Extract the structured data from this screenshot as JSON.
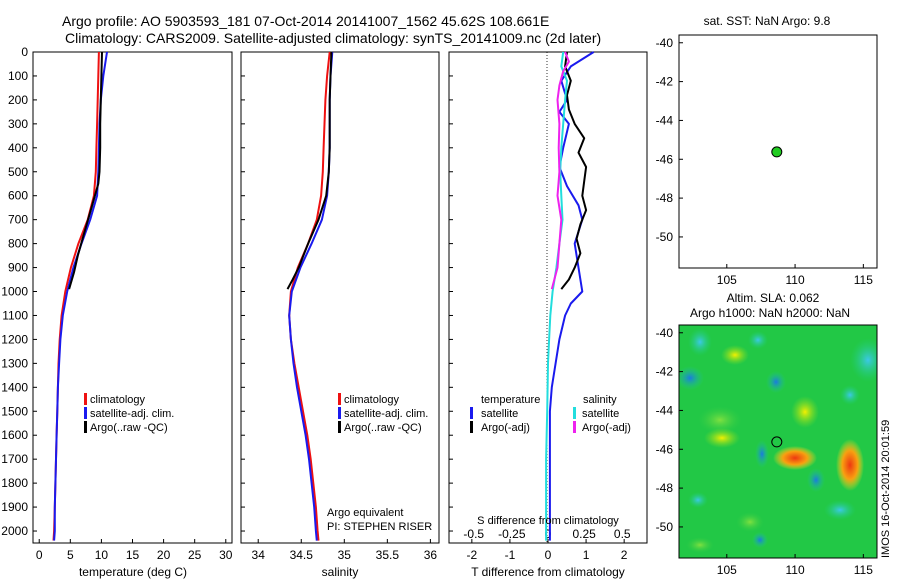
{
  "header": {
    "line1": "Argo profile: AO 5903593_181 07-Oct-2014 20141007_1562 45.62S 108.661E",
    "line2": "Climatology: CARS2009. Satellite-adjusted climatology: synTS_20141009.nc (2d later)"
  },
  "colors": {
    "climatology": "#ee1111",
    "satellite": "#1a1aee",
    "argo": "#000000",
    "cyan": "#22dddd",
    "magenta": "#ee22ee",
    "marker": "#22cc22"
  },
  "footer_stamp": "IMOS 16-Oct-2014 20:01:59",
  "chart_data": [
    {
      "type": "line",
      "panel": "temperature",
      "xlabel": "temperature (deg C)",
      "xlim": [
        -1,
        31
      ],
      "xticks": [
        0,
        5,
        10,
        15,
        20,
        25,
        30
      ],
      "ylim": [
        2050,
        0
      ],
      "yticks": [
        0,
        100,
        200,
        300,
        400,
        500,
        600,
        700,
        800,
        900,
        1000,
        1100,
        1200,
        1300,
        1400,
        1500,
        1600,
        1700,
        1800,
        1900,
        2000
      ],
      "legend": [
        "climatology",
        "satellite-adj. clim.",
        "Argo(..raw -QC)"
      ],
      "series": [
        {
          "name": "climatology",
          "color": "climatology",
          "points": [
            [
              9.6,
              0
            ],
            [
              9.5,
              100
            ],
            [
              9.4,
              200
            ],
            [
              9.3,
              300
            ],
            [
              9.2,
              400
            ],
            [
              9.1,
              500
            ],
            [
              8.8,
              600
            ],
            [
              7.8,
              700
            ],
            [
              6.3,
              800
            ],
            [
              5.1,
              900
            ],
            [
              4.2,
              1000
            ],
            [
              3.6,
              1100
            ],
            [
              3.3,
              1200
            ],
            [
              3.1,
              1300
            ],
            [
              3.0,
              1400
            ],
            [
              2.9,
              1500
            ],
            [
              2.8,
              1600
            ],
            [
              2.7,
              1700
            ],
            [
              2.6,
              1800
            ],
            [
              2.5,
              1900
            ],
            [
              2.4,
              2000
            ],
            [
              2.3,
              2040
            ]
          ]
        },
        {
          "name": "satellite-adj. clim.",
          "color": "satellite",
          "points": [
            [
              10.9,
              0
            ],
            [
              10.3,
              100
            ],
            [
              9.9,
              200
            ],
            [
              9.7,
              300
            ],
            [
              9.6,
              400
            ],
            [
              9.5,
              500
            ],
            [
              9.3,
              600
            ],
            [
              8.2,
              700
            ],
            [
              6.8,
              800
            ],
            [
              5.5,
              900
            ],
            [
              4.5,
              1000
            ],
            [
              3.8,
              1100
            ],
            [
              3.4,
              1200
            ],
            [
              3.2,
              1300
            ],
            [
              3.0,
              1400
            ],
            [
              2.9,
              1500
            ],
            [
              2.8,
              1600
            ],
            [
              2.7,
              1700
            ],
            [
              2.6,
              1800
            ],
            [
              2.5,
              1900
            ],
            [
              2.5,
              2000
            ],
            [
              2.4,
              2040
            ]
          ]
        },
        {
          "name": "Argo(..raw -QC)",
          "color": "argo",
          "points": [
            [
              10.1,
              0
            ],
            [
              10.0,
              100
            ],
            [
              9.9,
              200
            ],
            [
              9.8,
              300
            ],
            [
              9.8,
              400
            ],
            [
              9.7,
              500
            ],
            [
              9.5,
              550
            ],
            [
              8.4,
              650
            ],
            [
              7.3,
              750
            ],
            [
              6.2,
              850
            ],
            [
              5.6,
              920
            ],
            [
              4.8,
              990
            ]
          ]
        }
      ]
    },
    {
      "type": "line",
      "panel": "salinity",
      "xlabel": "salinity",
      "xlim": [
        33.8,
        36.1
      ],
      "xticks": [
        34,
        34.5,
        35,
        35.5,
        36
      ],
      "ylim": [
        2050,
        0
      ],
      "legend": [
        "climatology",
        "satellite-adj. clim.",
        "Argo(..raw -QC)"
      ],
      "annotation": [
        "Argo equivalent",
        "PI: STEPHEN RISER"
      ],
      "series": [
        {
          "name": "climatology",
          "color": "climatology",
          "points": [
            [
              34.83,
              0
            ],
            [
              34.8,
              100
            ],
            [
              34.78,
              200
            ],
            [
              34.77,
              300
            ],
            [
              34.76,
              400
            ],
            [
              34.75,
              500
            ],
            [
              34.73,
              600
            ],
            [
              34.68,
              700
            ],
            [
              34.58,
              800
            ],
            [
              34.46,
              900
            ],
            [
              34.38,
              1000
            ],
            [
              34.36,
              1100
            ],
            [
              34.38,
              1200
            ],
            [
              34.42,
              1300
            ],
            [
              34.47,
              1400
            ],
            [
              34.52,
              1500
            ],
            [
              34.57,
              1600
            ],
            [
              34.61,
              1700
            ],
            [
              34.64,
              1800
            ],
            [
              34.67,
              1900
            ],
            [
              34.69,
              2000
            ],
            [
              34.7,
              2040
            ]
          ]
        },
        {
          "name": "satellite-adj. clim.",
          "color": "satellite",
          "points": [
            [
              34.86,
              0
            ],
            [
              34.84,
              100
            ],
            [
              34.83,
              200
            ],
            [
              34.83,
              300
            ],
            [
              34.83,
              400
            ],
            [
              34.82,
              500
            ],
            [
              34.8,
              600
            ],
            [
              34.74,
              700
            ],
            [
              34.62,
              800
            ],
            [
              34.49,
              900
            ],
            [
              34.39,
              1000
            ],
            [
              34.36,
              1100
            ],
            [
              34.38,
              1200
            ],
            [
              34.41,
              1300
            ],
            [
              34.45,
              1400
            ],
            [
              34.5,
              1500
            ],
            [
              34.55,
              1600
            ],
            [
              34.59,
              1700
            ],
            [
              34.62,
              1800
            ],
            [
              34.65,
              1900
            ],
            [
              34.67,
              2000
            ],
            [
              34.68,
              2040
            ]
          ]
        },
        {
          "name": "Argo(..raw -QC)",
          "color": "argo",
          "points": [
            [
              34.85,
              0
            ],
            [
              34.84,
              100
            ],
            [
              34.83,
              200
            ],
            [
              34.83,
              300
            ],
            [
              34.83,
              400
            ],
            [
              34.82,
              500
            ],
            [
              34.79,
              600
            ],
            [
              34.7,
              700
            ],
            [
              34.58,
              800
            ],
            [
              34.47,
              900
            ],
            [
              34.4,
              950
            ],
            [
              34.34,
              990
            ]
          ]
        }
      ]
    },
    {
      "type": "line",
      "panel": "difference",
      "xlabel": "T difference from climatology",
      "xlabel_top": "S difference from climatology",
      "xlim": [
        -2.6,
        2.6
      ],
      "xticks": [
        -2,
        -1,
        0,
        1,
        2
      ],
      "sticks_labels": [
        "-0.5",
        "-0.25",
        "0",
        "0.25",
        "0.5"
      ],
      "legend_titles": [
        "temperature",
        "salinity"
      ],
      "legend": [
        "satellite",
        "Argo(-adj)",
        "satellite",
        "Argo(-adj)"
      ],
      "series": [
        {
          "name": "satellite",
          "color": "satellite",
          "quantity": "temperature",
          "points": [
            [
              1.2,
              0
            ],
            [
              0.6,
              60
            ],
            [
              0.35,
              120
            ],
            [
              0.5,
              200
            ],
            [
              0.3,
              250
            ],
            [
              0.55,
              300
            ],
            [
              0.4,
              400
            ],
            [
              0.3,
              480
            ],
            [
              0.5,
              560
            ],
            [
              0.8,
              640
            ],
            [
              0.9,
              700
            ],
            [
              0.7,
              800
            ],
            [
              0.8,
              900
            ],
            [
              0.9,
              1000
            ],
            [
              0.6,
              1050
            ],
            [
              0.45,
              1100
            ],
            [
              0.3,
              1200
            ],
            [
              0.2,
              1300
            ],
            [
              0.1,
              1400
            ],
            [
              0.05,
              1500
            ],
            [
              0.05,
              1700
            ],
            [
              0.05,
              1900
            ],
            [
              0.05,
              2040
            ]
          ]
        },
        {
          "name": "Argo(-adj)",
          "color": "argo",
          "quantity": "temperature",
          "points": [
            [
              0.5,
              0
            ],
            [
              0.45,
              60
            ],
            [
              0.6,
              120
            ],
            [
              0.5,
              180
            ],
            [
              0.55,
              240
            ],
            [
              0.7,
              300
            ],
            [
              0.95,
              360
            ],
            [
              0.8,
              420
            ],
            [
              1.0,
              480
            ],
            [
              0.95,
              540
            ],
            [
              0.9,
              600
            ],
            [
              1.0,
              660
            ],
            [
              0.85,
              720
            ],
            [
              0.75,
              780
            ],
            [
              0.85,
              840
            ],
            [
              0.7,
              900
            ],
            [
              0.55,
              950
            ],
            [
              0.35,
              990
            ]
          ]
        },
        {
          "name": "satellite",
          "color": "cyan",
          "quantity": "salinity",
          "points": [
            [
              0.4,
              0
            ],
            [
              0.35,
              60
            ],
            [
              0.5,
              120
            ],
            [
              0.45,
              200
            ],
            [
              0.4,
              300
            ],
            [
              0.35,
              400
            ],
            [
              0.32,
              500
            ],
            [
              0.35,
              600
            ],
            [
              0.38,
              700
            ],
            [
              0.3,
              800
            ],
            [
              0.22,
              900
            ],
            [
              0.12,
              1000
            ],
            [
              0.06,
              1100
            ],
            [
              0.03,
              1200
            ],
            [
              0.0,
              1300
            ],
            [
              -0.02,
              1500
            ],
            [
              -0.05,
              1700
            ],
            [
              -0.05,
              1900
            ],
            [
              -0.05,
              2040
            ]
          ]
        },
        {
          "name": "Argo(-adj)",
          "color": "magenta",
          "quantity": "salinity",
          "points": [
            [
              0.45,
              0
            ],
            [
              0.55,
              40
            ],
            [
              0.4,
              80
            ],
            [
              0.3,
              140
            ],
            [
              0.25,
              200
            ],
            [
              0.3,
              300
            ],
            [
              0.28,
              400
            ],
            [
              0.3,
              500
            ],
            [
              0.25,
              600
            ],
            [
              0.35,
              700
            ],
            [
              0.3,
              800
            ],
            [
              0.25,
              900
            ],
            [
              0.1,
              990
            ]
          ]
        }
      ]
    },
    {
      "type": "scatter",
      "panel": "sst",
      "title": "sat. SST: NaN Argo: 9.8",
      "xlim": [
        101.5,
        116
      ],
      "xticks": [
        105,
        110,
        115
      ],
      "ylim": [
        -51.6,
        -39.6
      ],
      "yticks": [
        -40,
        -42,
        -44,
        -46,
        -48,
        -50
      ],
      "marker": {
        "lon": 108.661,
        "lat": -45.62
      }
    },
    {
      "type": "heatmap",
      "panel": "sla",
      "title_lines": [
        "Altim. SLA: 0.062",
        "Argo h1000: NaN h2000: NaN"
      ],
      "xlim": [
        101.5,
        116
      ],
      "xticks": [
        105,
        110,
        115
      ],
      "ylim": [
        -51.6,
        -39.6
      ],
      "yticks": [
        -40,
        -42,
        -44,
        -46,
        -48,
        -50
      ],
      "marker": {
        "lon": 108.661,
        "lat": -45.62
      }
    }
  ]
}
